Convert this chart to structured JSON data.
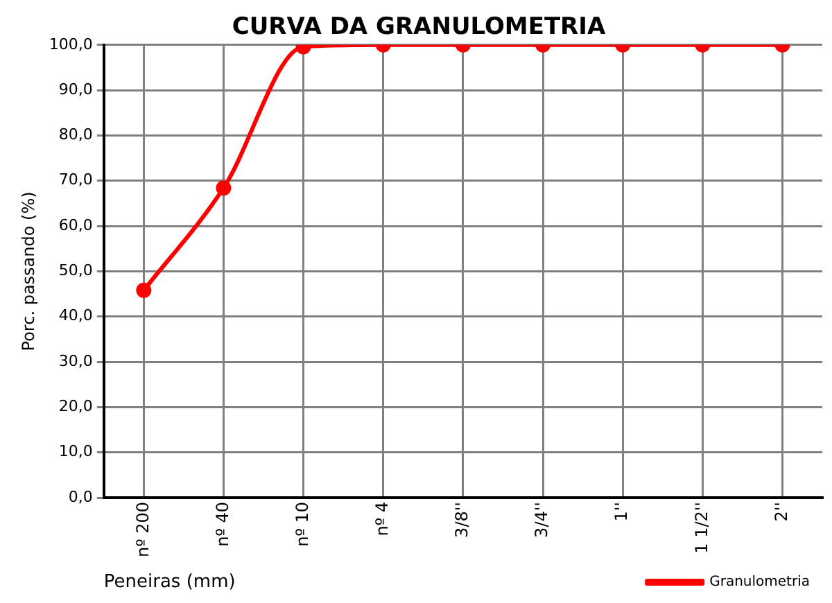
{
  "chart_data": {
    "type": "line",
    "title": "CURVA DA GRANULOMETRIA",
    "xlabel": "Peneiras (mm)",
    "ylabel": "Porc. passando (%)",
    "categories": [
      "nº 200",
      "nº 40",
      "nº 10",
      "nº 4",
      "3/8''",
      "3/4''",
      "1''",
      "1 1/2''",
      "2''"
    ],
    "series": [
      {
        "name": "Granulometria",
        "color": "#ff0000",
        "marker": "circle",
        "values": [
          45.8,
          68.4,
          99.6,
          100,
          100,
          100,
          100,
          100,
          100
        ]
      }
    ],
    "ylim": [
      0,
      100
    ],
    "yticks": [
      {
        "value": 0,
        "label": "0,0"
      },
      {
        "value": 10,
        "label": "10,0"
      },
      {
        "value": 20,
        "label": "20,0"
      },
      {
        "value": 30,
        "label": "30,0"
      },
      {
        "value": 40,
        "label": "40,0"
      },
      {
        "value": 50,
        "label": "50,0"
      },
      {
        "value": 60,
        "label": "60,0"
      },
      {
        "value": 70,
        "label": "70,0"
      },
      {
        "value": 80,
        "label": "80,0"
      },
      {
        "value": 90,
        "label": "90,0"
      },
      {
        "value": 100,
        "label": "100,0"
      }
    ],
    "grid": true,
    "legend": "bottom right"
  }
}
